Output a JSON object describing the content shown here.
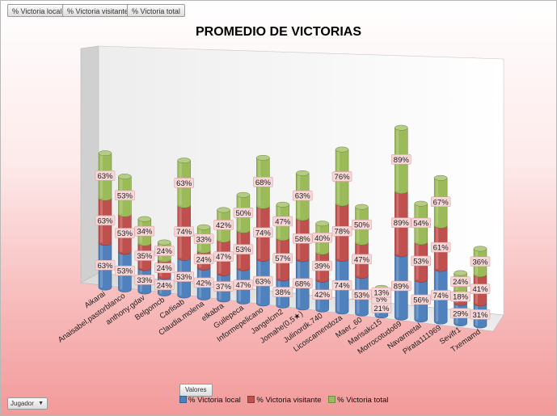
{
  "fields": [
    "% Victoria local",
    "% Victoria visitante",
    "% Victoria total"
  ],
  "values_button": "Valores",
  "filter_button": "Jugador",
  "colors": {
    "local": "#4f81bd",
    "visitante": "#c0504d",
    "total": "#9bbb59"
  },
  "chart_data": {
    "type": "bar",
    "stacked": true,
    "title": "PROMEDIO DE VICTORIAS",
    "categories": [
      "Aikarai",
      "Anaisabel.pastorblanco",
      "anthony.gdav",
      "Belgomcb",
      "Carlisab",
      "Claudia.molena",
      "elkabra",
      "Guilepeca",
      "Informepelicano",
      "Jangelcm2",
      "Jomahe(0,5★)",
      "Julinordk.740",
      "Licoscamendoza",
      "Maer_60",
      "Marisakc15",
      "Morrocotudo69",
      "Navarmetal",
      "Pirata111969",
      "Sevifr1",
      "Txemamd"
    ],
    "series": [
      {
        "name": "% Victoria local",
        "values": [
          63,
          53,
          33,
          24,
          53,
          42,
          37,
          47,
          63,
          38,
          68,
          42,
          74,
          53,
          21,
          89,
          56,
          74,
          29,
          31
        ],
        "labels": [
          "63%",
          "53%",
          "33%",
          "24%",
          "53%",
          "42%",
          "37%",
          "47%",
          "63%",
          "38%",
          "68%",
          "42%",
          "74%",
          "53%",
          "21%",
          "89%",
          "56%",
          "74%",
          "29%",
          "31%"
        ]
      },
      {
        "name": "% Victoria visitante",
        "values": [
          63,
          53,
          35,
          24,
          74,
          24,
          47,
          53,
          74,
          57,
          58,
          39,
          78,
          47,
          5,
          89,
          53,
          61,
          18,
          41
        ],
        "labels": [
          "63%",
          "53%",
          "35%",
          "24%",
          "74%",
          "24%",
          "47%",
          "53%",
          "74%",
          "57%",
          "58%",
          "39%",
          "78%",
          "47%",
          "5%",
          "89%",
          "53%",
          "61%",
          "18%",
          "41%"
        ]
      },
      {
        "name": "% Victoria total",
        "values": [
          63,
          53,
          34,
          24,
          63,
          33,
          42,
          50,
          68,
          47,
          63,
          40,
          76,
          50,
          13,
          89,
          54,
          67,
          24,
          36
        ],
        "labels": [
          "63%",
          "53%",
          "34%",
          "24%",
          "63%",
          "33%",
          "42%",
          "50%",
          "68%",
          "47%",
          "63%",
          "40%",
          "76%",
          "50%",
          "13%",
          "89%",
          "54%",
          "67%",
          "24%",
          "36%"
        ]
      }
    ],
    "legend_position": "bottom",
    "grid": false,
    "style": "3d-cylinder"
  }
}
